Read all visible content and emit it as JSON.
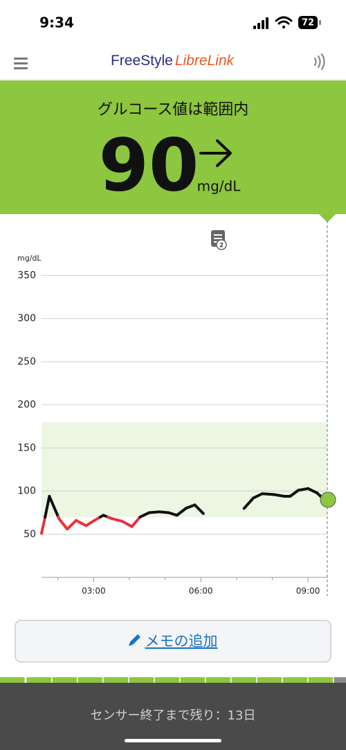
{
  "status_bar": {
    "time": "9:34",
    "battery": "72"
  },
  "header": {
    "logo_part1": "FreeStyle",
    "logo_part2": "LibreLink"
  },
  "glucose": {
    "status": "グルコース値は範囲内",
    "value": 90,
    "unit": "mg/dL"
  },
  "chart_data": {
    "type": "line",
    "y_axis_label": "mg/dL",
    "x": [
      1.54,
      1.64,
      1.76,
      2.03,
      2.26,
      2.51,
      2.79,
      3.06,
      3.27,
      3.52,
      3.8,
      4.07,
      4.3,
      4.55,
      4.84,
      5.1,
      5.33,
      5.58,
      5.83,
      6.07,
      6.6,
      7.21,
      7.47,
      7.72,
      8.05,
      8.34,
      8.5,
      8.73,
      9.0,
      9.25,
      9.43
    ],
    "series": [
      {
        "color": "#111111",
        "low_color": "#e8323c",
        "values": [
          51,
          70,
          94,
          68,
          56,
          66,
          60,
          67,
          72,
          68,
          65,
          59,
          70,
          75,
          76,
          75,
          72,
          80,
          84,
          74,
          null,
          80,
          92,
          97,
          96,
          94,
          94,
          101,
          103,
          98,
          91
        ]
      }
    ],
    "target_range": [
      70,
      180
    ],
    "target_color": "#edf6e3",
    "current": {
      "x": 9.56,
      "value": 90,
      "color": "#8dc63f"
    },
    "xlim": [
      1.54,
      9.56
    ],
    "ylim": [
      0,
      380
    ],
    "xticks": [
      {
        "value": 3,
        "label": "03:00"
      },
      {
        "value": 6,
        "label": "06:00"
      },
      {
        "value": 9,
        "label": "09:00"
      }
    ],
    "x_minor_ticks": [
      2,
      4,
      5,
      7,
      8
    ],
    "yticks": [
      50,
      100,
      150,
      200,
      250,
      300,
      350
    ],
    "grid": true
  },
  "note_count": "2",
  "add_note_button": "メモの追加",
  "sensor_remaining": "センサー終了まで残り：13日"
}
